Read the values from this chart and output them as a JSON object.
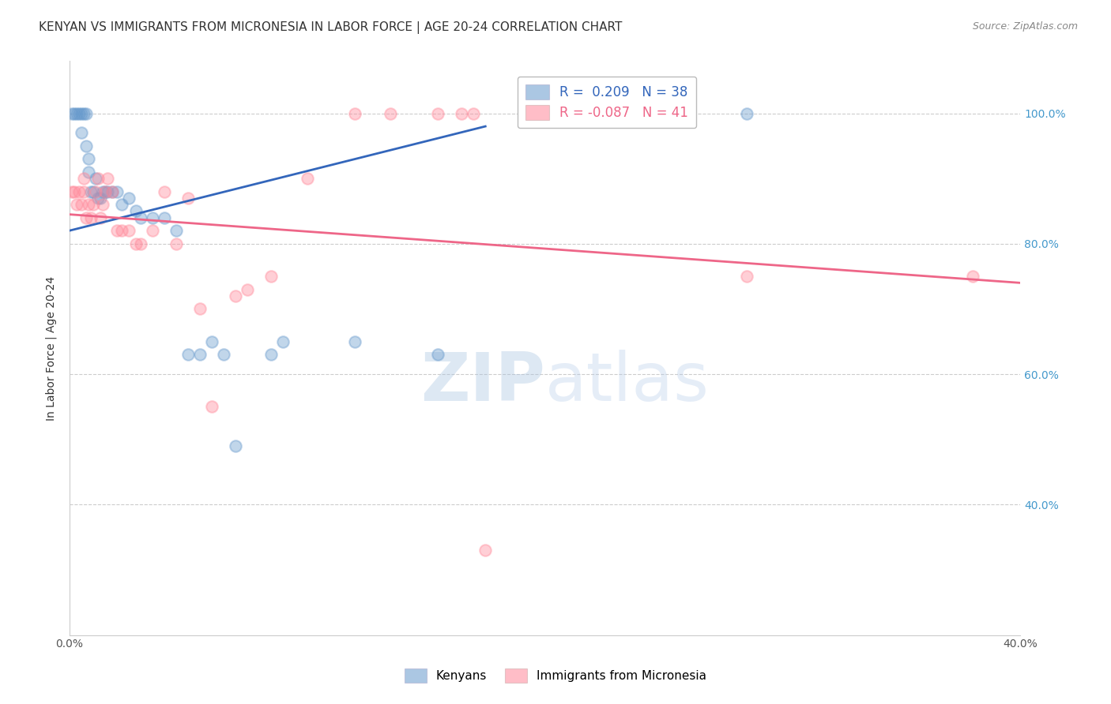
{
  "title": "KENYAN VS IMMIGRANTS FROM MICRONESIA IN LABOR FORCE | AGE 20-24 CORRELATION CHART",
  "source": "Source: ZipAtlas.com",
  "ylabel": "In Labor Force | Age 20-24",
  "xlim": [
    0.0,
    0.4
  ],
  "ylim": [
    0.2,
    1.08
  ],
  "yticks": [
    0.4,
    0.6,
    0.8,
    1.0
  ],
  "yticklabels": [
    "40.0%",
    "60.0%",
    "80.0%",
    "100.0%"
  ],
  "background_color": "#ffffff",
  "grid_color": "#cccccc",
  "watermark_zip": "ZIP",
  "watermark_atlas": "atlas",
  "legend_label_blue": "R =  0.209   N = 38",
  "legend_label_pink": "R = -0.087   N = 41",
  "legend_label_blue_series": "Kenyans",
  "legend_label_pink_series": "Immigrants from Micronesia",
  "blue_scatter_x": [
    0.001,
    0.002,
    0.003,
    0.004,
    0.005,
    0.005,
    0.006,
    0.007,
    0.007,
    0.008,
    0.008,
    0.009,
    0.01,
    0.011,
    0.012,
    0.013,
    0.014,
    0.015,
    0.016,
    0.018,
    0.02,
    0.022,
    0.025,
    0.028,
    0.03,
    0.035,
    0.04,
    0.045,
    0.05,
    0.055,
    0.06,
    0.065,
    0.07,
    0.085,
    0.09,
    0.12,
    0.155,
    0.285
  ],
  "blue_scatter_y": [
    1.0,
    1.0,
    1.0,
    1.0,
    0.97,
    1.0,
    1.0,
    1.0,
    0.95,
    0.93,
    0.91,
    0.88,
    0.88,
    0.9,
    0.87,
    0.87,
    0.88,
    0.88,
    0.88,
    0.88,
    0.88,
    0.86,
    0.87,
    0.85,
    0.84,
    0.84,
    0.84,
    0.82,
    0.63,
    0.63,
    0.65,
    0.63,
    0.49,
    0.63,
    0.65,
    0.65,
    0.63,
    1.0
  ],
  "pink_scatter_x": [
    0.001,
    0.002,
    0.003,
    0.004,
    0.005,
    0.006,
    0.006,
    0.007,
    0.008,
    0.009,
    0.01,
    0.011,
    0.012,
    0.013,
    0.014,
    0.015,
    0.016,
    0.018,
    0.02,
    0.022,
    0.025,
    0.028,
    0.03,
    0.035,
    0.04,
    0.045,
    0.05,
    0.055,
    0.06,
    0.07,
    0.075,
    0.085,
    0.1,
    0.12,
    0.135,
    0.155,
    0.165,
    0.17,
    0.175,
    0.285,
    0.38
  ],
  "pink_scatter_y": [
    0.88,
    0.88,
    0.86,
    0.88,
    0.86,
    0.88,
    0.9,
    0.84,
    0.86,
    0.84,
    0.86,
    0.88,
    0.9,
    0.84,
    0.86,
    0.88,
    0.9,
    0.88,
    0.82,
    0.82,
    0.82,
    0.8,
    0.8,
    0.82,
    0.88,
    0.8,
    0.87,
    0.7,
    0.55,
    0.72,
    0.73,
    0.75,
    0.9,
    1.0,
    1.0,
    1.0,
    1.0,
    1.0,
    0.33,
    0.75,
    0.75
  ],
  "blue_line_x": [
    0.0,
    0.175
  ],
  "blue_line_y": [
    0.82,
    0.98
  ],
  "pink_line_x": [
    0.0,
    0.4
  ],
  "pink_line_y": [
    0.845,
    0.74
  ],
  "marker_size": 110,
  "marker_alpha": 0.4,
  "blue_color": "#6699cc",
  "pink_color": "#ff8899",
  "blue_line_color": "#3366bb",
  "pink_line_color": "#ee6688",
  "title_fontsize": 11,
  "axis_label_fontsize": 10,
  "tick_fontsize": 10,
  "right_tick_color": "#4499cc"
}
